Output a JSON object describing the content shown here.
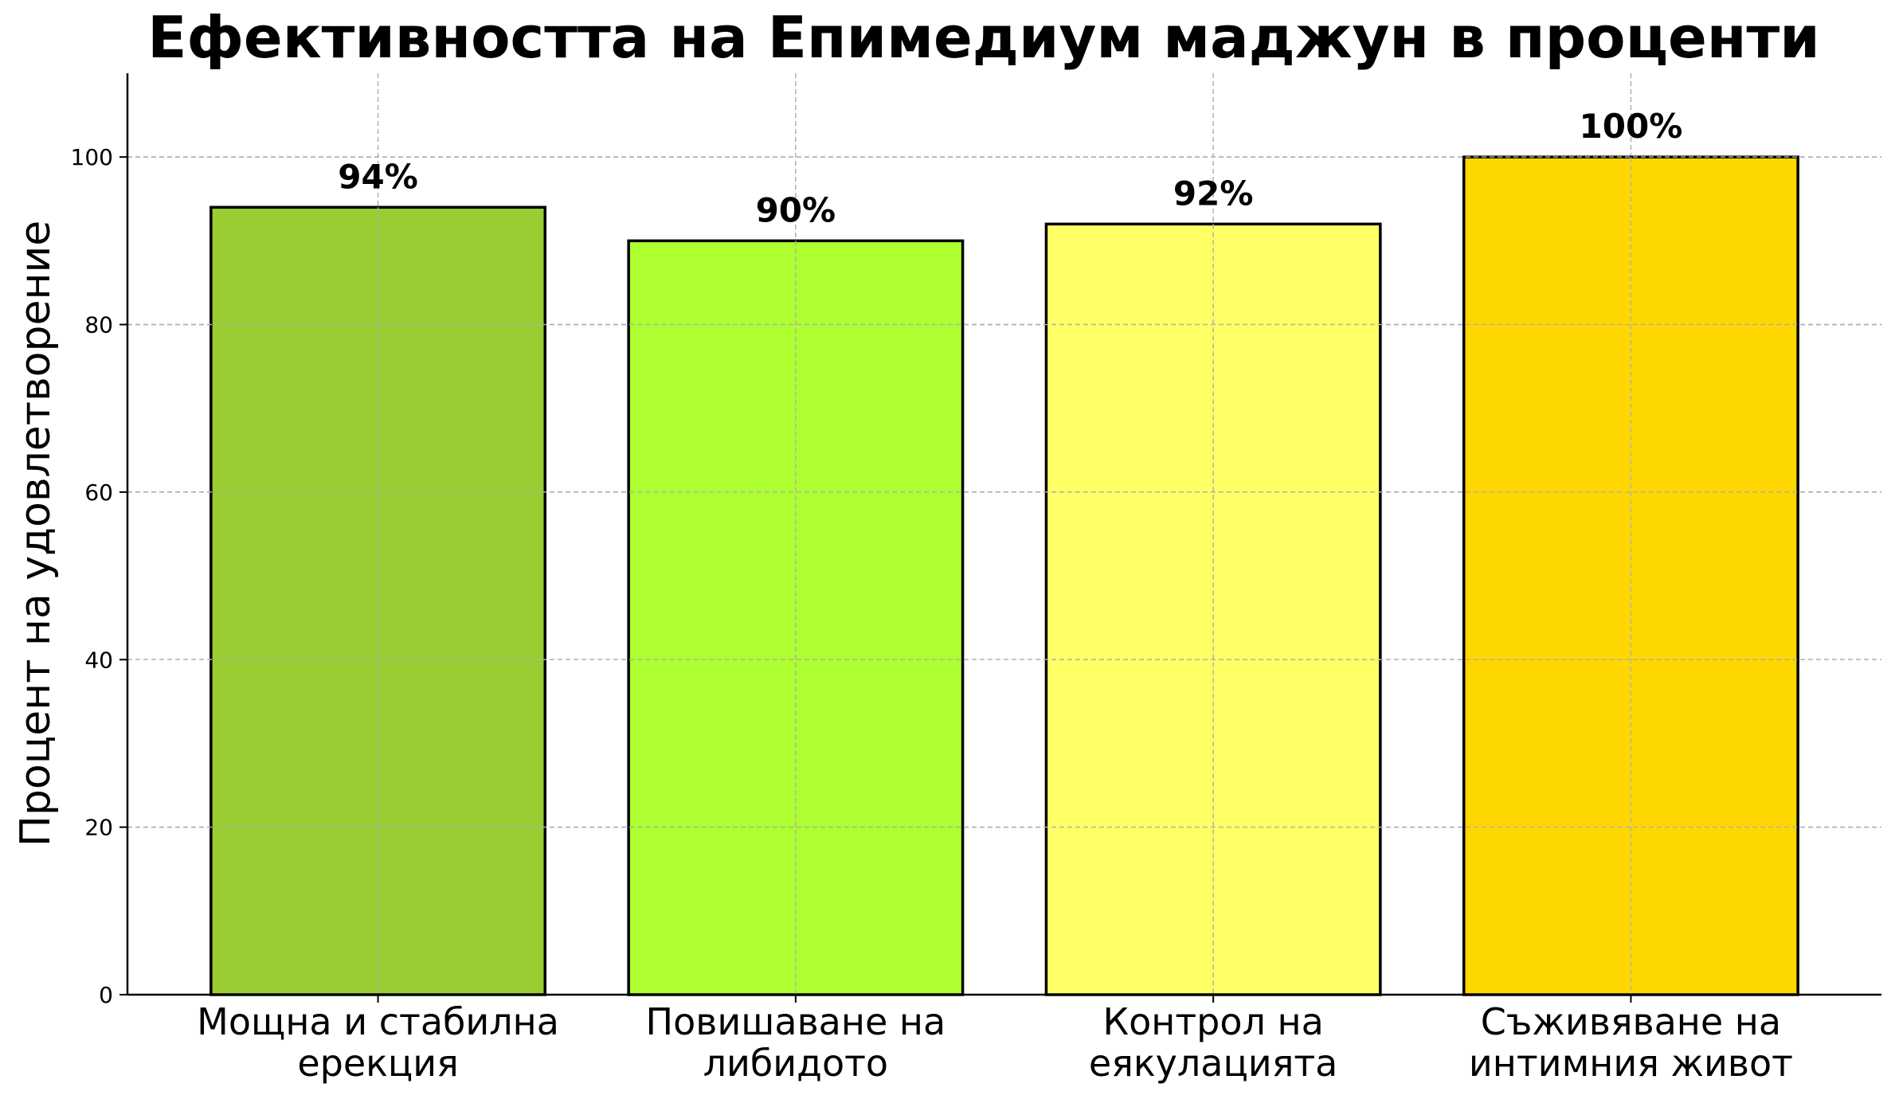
{
  "chart_data": {
    "type": "bar",
    "title": "Ефективността на Епимедиум маджун в проценти",
    "xlabel": "",
    "ylabel": "Процент на удовлетворение",
    "ylim": [
      0,
      110
    ],
    "yticks": [
      0,
      20,
      40,
      60,
      80,
      100
    ],
    "grid": true,
    "categories": [
      [
        "Мощна и стабилна",
        "ерекция"
      ],
      [
        "Повишаване на",
        "либидото"
      ],
      [
        "Контрол на",
        "еякулацията"
      ],
      [
        "Съживяване на",
        "интимния живот"
      ]
    ],
    "values": [
      94,
      90,
      92,
      100
    ],
    "data_labels": [
      "94%",
      "90%",
      "92%",
      "100%"
    ],
    "colors": [
      "#9ACD32",
      "#ADFF2F",
      "#FFFF66",
      "#FFD700"
    ]
  }
}
